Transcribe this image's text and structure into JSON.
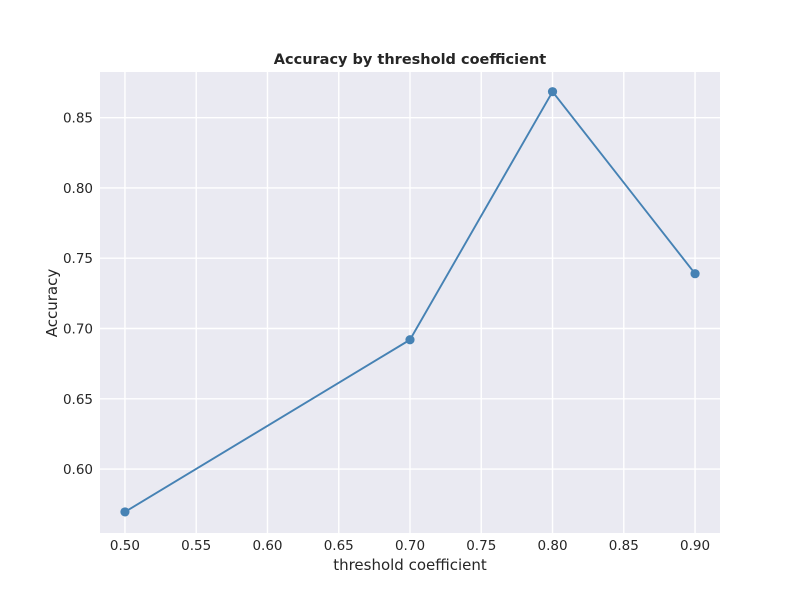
{
  "colors": {
    "plot_background": "#EAEAF2",
    "grid": "#FFFFFF",
    "series_line": "#4682B4",
    "text": "#262626"
  },
  "chart_data": {
    "type": "line",
    "title": "Accuracy by threshold coefficient",
    "xlabel": "threshold coefficient",
    "ylabel": "Accuracy",
    "xlim": [
      0.4825,
      0.9175
    ],
    "ylim": [
      0.5545,
      0.8825
    ],
    "grid": true,
    "legend": "none",
    "x_ticks": [
      0.5,
      0.55,
      0.6,
      0.65,
      0.7,
      0.75,
      0.8,
      0.85,
      0.9
    ],
    "x_tick_labels": [
      "0.50",
      "0.55",
      "0.60",
      "0.65",
      "0.70",
      "0.75",
      "0.80",
      "0.85",
      "0.90"
    ],
    "y_ticks": [
      0.6,
      0.65,
      0.7,
      0.75,
      0.8,
      0.85
    ],
    "y_tick_labels": [
      "0.60",
      "0.65",
      "0.70",
      "0.75",
      "0.80",
      "0.85"
    ],
    "series": [
      {
        "x": [
          0.5,
          0.7,
          0.8,
          0.9
        ],
        "y": [
          0.5695,
          0.692,
          0.8685,
          0.739
        ],
        "marker": "circle"
      }
    ]
  }
}
